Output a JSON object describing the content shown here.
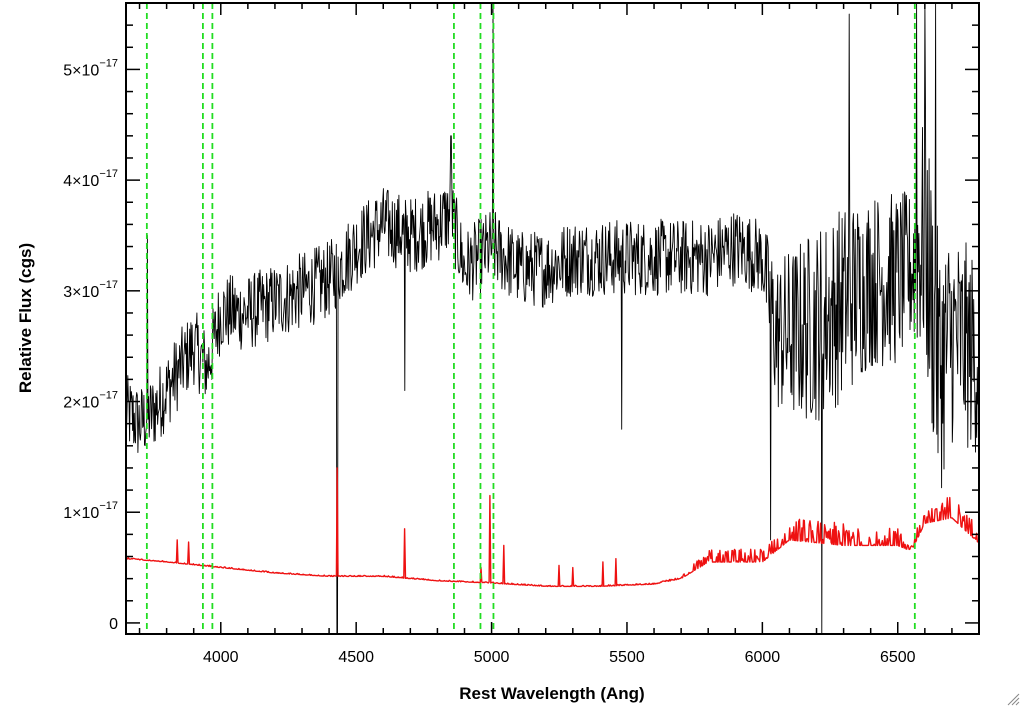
{
  "chart_data": {
    "type": "line",
    "xlabel": "Rest Wavelength (Ang)",
    "ylabel": "Relative Flux (cgs)",
    "xlim": [
      3650,
      6800
    ],
    "ylim": [
      -0.1,
      5.6
    ],
    "y_scale_exponent": -17,
    "x_ticks": [
      4000,
      4500,
      5000,
      5500,
      6000,
      6500
    ],
    "x_tick_labels": [
      "4000",
      "4500",
      "5000",
      "5500",
      "6000",
      "6500"
    ],
    "x_minor_step": 100,
    "y_ticks": [
      0,
      1,
      2,
      3,
      4,
      5
    ],
    "y_tick_labels": [
      {
        "mantissa": "0",
        "exponent": ""
      },
      {
        "mantissa": "1×10",
        "exponent": "−17"
      },
      {
        "mantissa": "2×10",
        "exponent": "−17"
      },
      {
        "mantissa": "3×10",
        "exponent": "−17"
      },
      {
        "mantissa": "4×10",
        "exponent": "−17"
      },
      {
        "mantissa": "5×10",
        "exponent": "−17"
      }
    ],
    "y_minor_step": 0.2,
    "grid": false,
    "legend": "none",
    "reference_lines": {
      "style": "dashed",
      "color": "#22dd22",
      "x": [
        3727,
        3934,
        3969,
        4861,
        4959,
        5007,
        6563
      ]
    },
    "series": [
      {
        "color": "#000000",
        "style": "noisy",
        "trend_x": [
          3650,
          3700,
          3750,
          3800,
          3850,
          3900,
          3950,
          4000,
          4100,
          4200,
          4300,
          4400,
          4500,
          4600,
          4700,
          4800,
          4850,
          4900,
          5000,
          5100,
          5200,
          5300,
          5400,
          5500,
          5600,
          5700,
          5800,
          5900,
          6000,
          6050,
          6100,
          6200,
          6300,
          6400,
          6500,
          6550,
          6600,
          6650,
          6700,
          6800
        ],
        "trend_y": [
          1.9,
          1.8,
          1.9,
          2.1,
          2.3,
          2.5,
          2.3,
          2.8,
          2.8,
          2.9,
          3.0,
          3.1,
          3.4,
          3.6,
          3.5,
          3.6,
          3.7,
          3.2,
          3.4,
          3.2,
          3.2,
          3.3,
          3.3,
          3.3,
          3.3,
          3.3,
          3.3,
          3.4,
          3.3,
          2.6,
          2.6,
          2.7,
          2.9,
          3.1,
          3.1,
          3.2,
          3.5,
          2.3,
          2.6,
          2.4
        ],
        "noise_amplitude": [
          0.35,
          0.35,
          0.35,
          0.35,
          0.35,
          0.35,
          0.35,
          0.35,
          0.35,
          0.35,
          0.35,
          0.35,
          0.35,
          0.35,
          0.35,
          0.35,
          0.35,
          0.35,
          0.35,
          0.35,
          0.35,
          0.35,
          0.35,
          0.35,
          0.35,
          0.35,
          0.35,
          0.35,
          0.35,
          0.7,
          0.8,
          0.9,
          0.9,
          0.8,
          0.8,
          0.7,
          1.2,
          1.2,
          1.0,
          0.9
        ],
        "spikes": [
          {
            "x": 3730,
            "y": 3.5
          },
          {
            "x": 4430,
            "y": -0.1
          },
          {
            "x": 4680,
            "y": 2.1
          },
          {
            "x": 4850,
            "y": 4.4
          },
          {
            "x": 5005,
            "y": 5.6
          },
          {
            "x": 5480,
            "y": 1.75
          },
          {
            "x": 6030,
            "y": 0.75
          },
          {
            "x": 6220,
            "y": -0.1
          },
          {
            "x": 6320,
            "y": 5.5
          },
          {
            "x": 6570,
            "y": 5.6
          },
          {
            "x": 6600,
            "y": 5.6
          },
          {
            "x": 6640,
            "y": 5.6
          }
        ]
      },
      {
        "color": "#ee1111",
        "style": "smooth-with-lines",
        "trend_x": [
          3650,
          3800,
          4000,
          4200,
          4400,
          4600,
          4800,
          5000,
          5200,
          5400,
          5600,
          5700,
          5800,
          6000,
          6100,
          6300,
          6500,
          6550,
          6600,
          6700,
          6800
        ],
        "trend_y": [
          0.58,
          0.55,
          0.5,
          0.45,
          0.42,
          0.42,
          0.38,
          0.36,
          0.33,
          0.33,
          0.35,
          0.4,
          0.55,
          0.55,
          0.75,
          0.7,
          0.7,
          0.65,
          0.9,
          0.95,
          0.72
        ],
        "noise_amplitude": [
          0.01,
          0.01,
          0.01,
          0.01,
          0.01,
          0.01,
          0.01,
          0.01,
          0.01,
          0.01,
          0.01,
          0.02,
          0.12,
          0.12,
          0.2,
          0.2,
          0.15,
          0.05,
          0.2,
          0.2,
          0.15
        ],
        "spikes": [
          {
            "x": 3840,
            "y": 0.75
          },
          {
            "x": 3880,
            "y": 0.73
          },
          {
            "x": 4430,
            "y": 1.4
          },
          {
            "x": 4680,
            "y": 0.85
          },
          {
            "x": 4960,
            "y": 0.5
          },
          {
            "x": 4995,
            "y": 1.15
          },
          {
            "x": 5045,
            "y": 0.7
          },
          {
            "x": 5250,
            "y": 0.52
          },
          {
            "x": 5300,
            "y": 0.5
          },
          {
            "x": 5410,
            "y": 0.55
          },
          {
            "x": 5460,
            "y": 0.58
          }
        ]
      }
    ]
  }
}
